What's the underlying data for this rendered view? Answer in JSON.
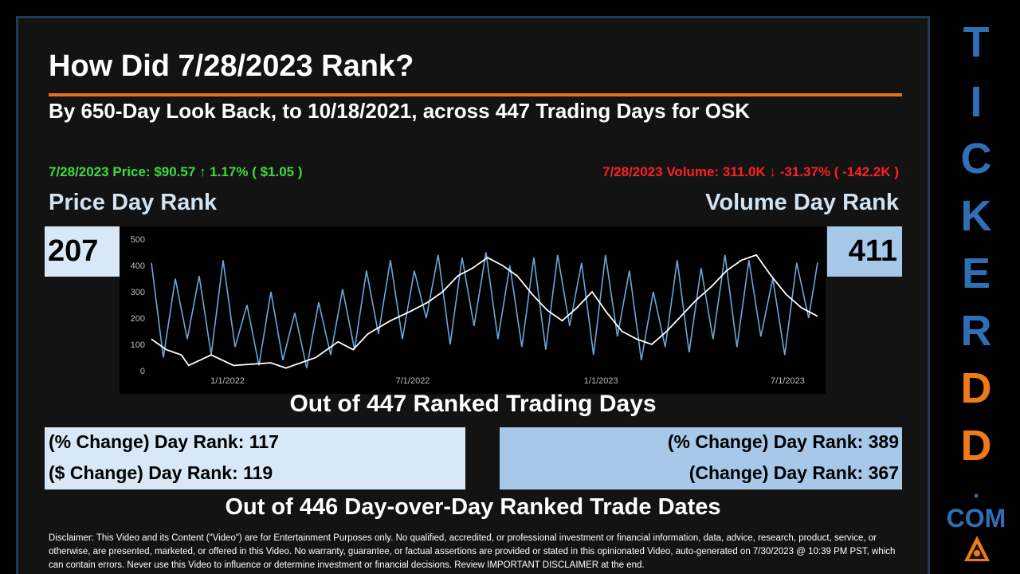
{
  "title": "How Did 7/28/2023 Rank?",
  "subtitle": "By 650-Day Look Back, to 10/18/2021, across 447 Trading Days for OSK",
  "price_line": "7/28/2023 Price: $90.57 ↑ 1.17% ( $1.05 )",
  "volume_line": "7/28/2023 Volume: 311.0K ↓ -31.37% ( -142.2K )",
  "price_rank_label": "Price Day Rank",
  "volume_rank_label": "Volume Day Rank",
  "price_rank": "207",
  "volume_rank": "411",
  "out_of_ranked": "Out of 447 Ranked Trading Days",
  "left_changes": [
    "(% Change) Day Rank: 117",
    "($ Change) Day Rank: 119"
  ],
  "right_changes": [
    "(% Change) Day Rank: 389",
    "(Change) Day Rank: 367"
  ],
  "out_of_dod": "Out of 446 Day-over-Day Ranked Trade Dates",
  "disclaimer": "Disclaimer: This Video and its Content (\"Video\") are for Entertainment Purposes only. No qualified, accredited, or professional investment or financial information, data, advice, research, product, service, or otherwise, are presented, marketed, or offered in this Video. No warranty, guarantee, or factual assertions are provided or stated in this opinionated Video, auto-generated on 7/30/2023 @ 10:39 PM PST, which can contain errors. Never use this Video to influence or determine investment or financial decisions. Review IMPORTANT DISCLAIMER at the end.",
  "brand": {
    "letters": [
      "T",
      "I",
      "C",
      "K",
      "E",
      "R",
      "D",
      "D"
    ],
    "letter_colors": [
      "#2e6fb5",
      "#2e6fb5",
      "#2e6fb5",
      "#2e6fb5",
      "#2e6fb5",
      "#2e6fb5",
      "#f07a1a",
      "#f07a1a"
    ],
    "dot": ".",
    "com": "COM",
    "logo_icon": "triangle-logo-icon"
  },
  "colors": {
    "accent_orange": "#e8731f",
    "price_green": "#3ddc3d",
    "volume_red": "#ff2020",
    "price_line": "#ffffff",
    "volume_series": "#6ea6d8"
  },
  "chart_data": {
    "type": "line",
    "x_ticks": [
      "1/1/2022",
      "7/1/2022",
      "1/1/2023",
      "7/1/2023"
    ],
    "y_ticks": [
      "0",
      "100",
      "200",
      "300",
      "400",
      "500"
    ],
    "ylim": [
      0,
      500
    ],
    "grid": false,
    "n_points": 447,
    "series": [
      {
        "color": "#ffffff",
        "keyframes": [
          [
            0,
            120
          ],
          [
            10,
            80
          ],
          [
            20,
            60
          ],
          [
            25,
            20
          ],
          [
            40,
            60
          ],
          [
            55,
            20
          ],
          [
            80,
            30
          ],
          [
            90,
            10
          ],
          [
            100,
            30
          ],
          [
            110,
            50
          ],
          [
            125,
            110
          ],
          [
            135,
            80
          ],
          [
            145,
            140
          ],
          [
            160,
            190
          ],
          [
            175,
            230
          ],
          [
            185,
            260
          ],
          [
            195,
            300
          ],
          [
            205,
            360
          ],
          [
            215,
            390
          ],
          [
            225,
            430
          ],
          [
            235,
            400
          ],
          [
            245,
            360
          ],
          [
            255,
            290
          ],
          [
            265,
            230
          ],
          [
            275,
            190
          ],
          [
            285,
            240
          ],
          [
            295,
            300
          ],
          [
            305,
            220
          ],
          [
            315,
            150
          ],
          [
            325,
            120
          ],
          [
            335,
            100
          ],
          [
            345,
            150
          ],
          [
            355,
            210
          ],
          [
            365,
            270
          ],
          [
            375,
            320
          ],
          [
            385,
            380
          ],
          [
            395,
            420
          ],
          [
            405,
            440
          ],
          [
            415,
            360
          ],
          [
            425,
            290
          ],
          [
            435,
            240
          ],
          [
            446,
            207
          ]
        ]
      },
      {
        "color": "#6ea6d8",
        "keyframes": [
          [
            0,
            410
          ],
          [
            8,
            50
          ],
          [
            16,
            350
          ],
          [
            24,
            120
          ],
          [
            32,
            360
          ],
          [
            40,
            60
          ],
          [
            48,
            420
          ],
          [
            56,
            90
          ],
          [
            64,
            250
          ],
          [
            72,
            20
          ],
          [
            80,
            300
          ],
          [
            88,
            40
          ],
          [
            96,
            220
          ],
          [
            104,
            10
          ],
          [
            112,
            260
          ],
          [
            120,
            60
          ],
          [
            128,
            310
          ],
          [
            136,
            80
          ],
          [
            144,
            380
          ],
          [
            152,
            140
          ],
          [
            160,
            420
          ],
          [
            168,
            120
          ],
          [
            176,
            380
          ],
          [
            184,
            200
          ],
          [
            192,
            440
          ],
          [
            200,
            100
          ],
          [
            208,
            430
          ],
          [
            216,
            170
          ],
          [
            224,
            450
          ],
          [
            232,
            120
          ],
          [
            240,
            400
          ],
          [
            248,
            90
          ],
          [
            256,
            430
          ],
          [
            264,
            80
          ],
          [
            272,
            440
          ],
          [
            280,
            170
          ],
          [
            288,
            410
          ],
          [
            296,
            60
          ],
          [
            304,
            440
          ],
          [
            312,
            130
          ],
          [
            320,
            380
          ],
          [
            328,
            40
          ],
          [
            336,
            300
          ],
          [
            344,
            90
          ],
          [
            352,
            420
          ],
          [
            360,
            70
          ],
          [
            368,
            390
          ],
          [
            376,
            120
          ],
          [
            384,
            440
          ],
          [
            392,
            90
          ],
          [
            400,
            420
          ],
          [
            408,
            130
          ],
          [
            416,
            350
          ],
          [
            424,
            60
          ],
          [
            432,
            410
          ],
          [
            440,
            200
          ],
          [
            446,
            411
          ]
        ]
      }
    ]
  }
}
